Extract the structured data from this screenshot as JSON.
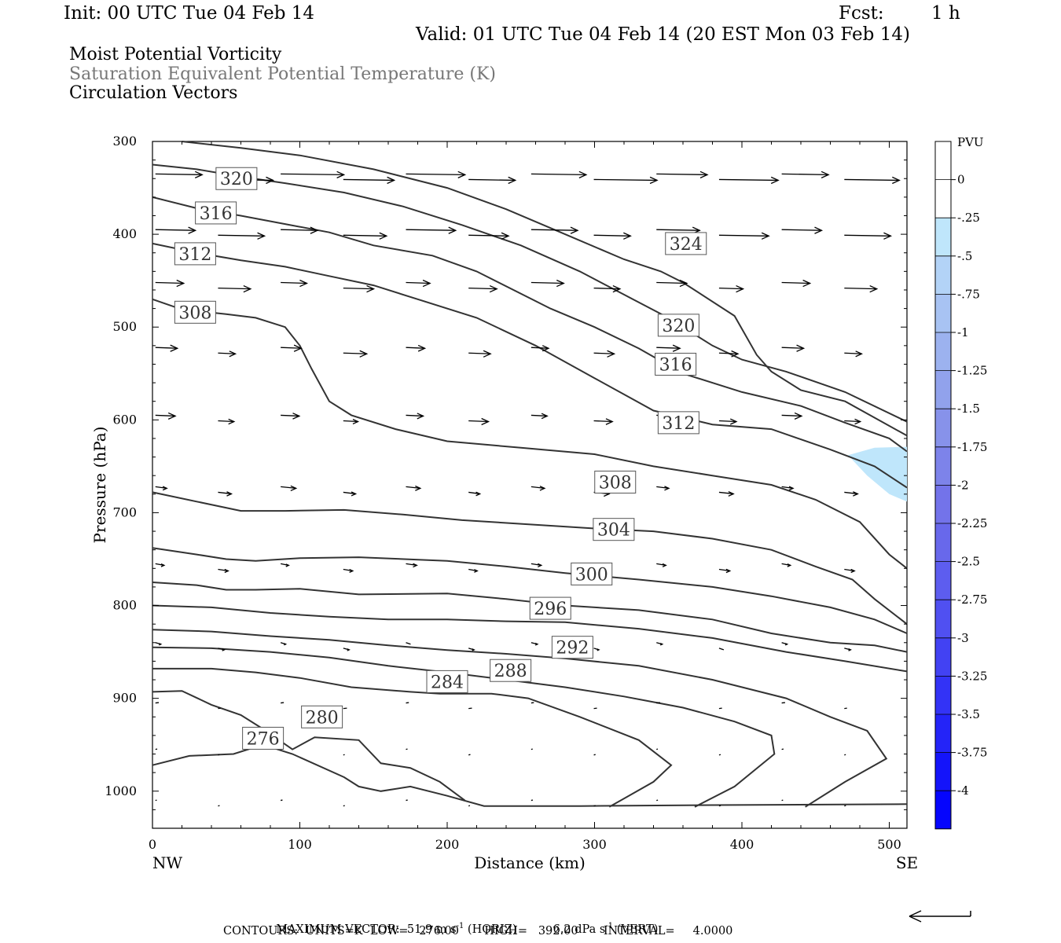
{
  "header": {
    "init": "Init: 00 UTC Tue 04 Feb 14",
    "fcst_label": "Fcst:",
    "fcst_value": "1 h",
    "valid": "Valid: 01 UTC Tue 04 Feb 14 (20 EST Mon 03 Feb 14)",
    "field1": "Moist Potential Vorticity",
    "field2": "Saturation Equivalent Potential Temperature (K)",
    "field3": "Circulation Vectors"
  },
  "chart_data": {
    "type": "cross-section",
    "xlabel": "Distance (km)",
    "ylabel": "Pressure (hPa)",
    "xlim": [
      0,
      512
    ],
    "ylim": [
      1040,
      300
    ],
    "x_ticks": [
      0,
      100,
      200,
      300,
      400,
      500
    ],
    "y_ticks": [
      300,
      400,
      500,
      600,
      700,
      800,
      900,
      1000
    ],
    "x_end_labels": {
      "left": "NW",
      "right": "SE"
    },
    "colorbar": {
      "title": "PVU",
      "labels": [
        "0",
        "-.25",
        "-.5",
        "-.75",
        "-1",
        "-1.25",
        "-1.5",
        "-1.75",
        "-2",
        "-2.25",
        "-2.5",
        "-2.75",
        "-3",
        "-3.25",
        "-3.5",
        "-3.75",
        "-4"
      ],
      "colors": [
        "#ffffff",
        "#ffffff",
        "#bfe6fb",
        "#b3d3f7",
        "#a8c3f3",
        "#9cb2ef",
        "#91a2ec",
        "#8792ea",
        "#7d83ea",
        "#7373ea",
        "#6868eb",
        "#5d5def",
        "#5050f1",
        "#4242f3",
        "#3333f6",
        "#2424f8",
        "#1414fa",
        "#0505fd"
      ]
    },
    "contour_labels": [
      "276",
      "280",
      "284",
      "288",
      "292",
      "296",
      "300",
      "304",
      "308",
      "312",
      "316",
      "320",
      "324"
    ],
    "contours": [
      {
        "value": 276,
        "points": [
          [
            0,
            972
          ],
          [
            25,
            962
          ],
          [
            55,
            960
          ],
          [
            75,
            950
          ],
          [
            95,
            960
          ],
          [
            130,
            985
          ],
          [
            140,
            995
          ],
          [
            155,
            1000
          ],
          [
            175,
            995
          ],
          [
            200,
            1005
          ],
          [
            225,
            1016
          ],
          [
            290,
            1016
          ],
          [
            380,
            1015
          ],
          [
            512,
            1014
          ]
        ]
      },
      {
        "value": 280,
        "points": [
          [
            0,
            893
          ],
          [
            20,
            892
          ],
          [
            40,
            907
          ],
          [
            60,
            918
          ],
          [
            75,
            933
          ],
          [
            95,
            955
          ],
          [
            110,
            942
          ],
          [
            140,
            945
          ],
          [
            155,
            970
          ],
          [
            175,
            975
          ],
          [
            195,
            990
          ],
          [
            212,
            1010
          ]
        ]
      },
      {
        "value": 284,
        "points": [
          [
            0,
            868
          ],
          [
            40,
            868
          ],
          [
            70,
            872
          ],
          [
            100,
            878
          ],
          [
            135,
            888
          ],
          [
            175,
            893
          ],
          [
            195,
            895
          ],
          [
            230,
            895
          ],
          [
            255,
            900
          ],
          [
            290,
            920
          ],
          [
            330,
            945
          ],
          [
            352,
            972
          ],
          [
            340,
            990
          ],
          [
            310,
            1017
          ]
        ]
      },
      {
        "value": 288,
        "points": [
          [
            0,
            845
          ],
          [
            40,
            846
          ],
          [
            80,
            850
          ],
          [
            120,
            856
          ],
          [
            160,
            865
          ],
          [
            200,
            872
          ],
          [
            240,
            880
          ],
          [
            280,
            888
          ],
          [
            320,
            898
          ],
          [
            360,
            910
          ],
          [
            395,
            925
          ],
          [
            420,
            940
          ],
          [
            422,
            960
          ],
          [
            395,
            995
          ],
          [
            368,
            1017
          ]
        ]
      },
      {
        "value": 292,
        "points": [
          [
            0,
            826
          ],
          [
            40,
            828
          ],
          [
            80,
            833
          ],
          [
            120,
            837
          ],
          [
            160,
            843
          ],
          [
            200,
            848
          ],
          [
            240,
            852
          ],
          [
            280,
            857
          ],
          [
            330,
            865
          ],
          [
            380,
            880
          ],
          [
            430,
            900
          ],
          [
            460,
            920
          ],
          [
            485,
            935
          ],
          [
            498,
            965
          ],
          [
            470,
            990
          ],
          [
            443,
            1017
          ]
        ]
      },
      {
        "value": 296,
        "points": [
          [
            0,
            800
          ],
          [
            40,
            802
          ],
          [
            80,
            808
          ],
          [
            120,
            812
          ],
          [
            160,
            815
          ],
          [
            200,
            815
          ],
          [
            240,
            817
          ],
          [
            280,
            818
          ],
          [
            330,
            825
          ],
          [
            380,
            835
          ],
          [
            430,
            850
          ],
          [
            470,
            860
          ],
          [
            512,
            871
          ]
        ]
      },
      {
        "value": 300,
        "points": [
          [
            0,
            775
          ],
          [
            30,
            778
          ],
          [
            50,
            783
          ],
          [
            70,
            783
          ],
          [
            100,
            782
          ],
          [
            140,
            788
          ],
          [
            200,
            787
          ],
          [
            240,
            793
          ],
          [
            280,
            800
          ],
          [
            330,
            805
          ],
          [
            380,
            815
          ],
          [
            420,
            830
          ],
          [
            460,
            840
          ],
          [
            490,
            843
          ],
          [
            512,
            850
          ]
        ]
      },
      {
        "value": 304,
        "points": [
          [
            0,
            738
          ],
          [
            30,
            745
          ],
          [
            50,
            750
          ],
          [
            70,
            752
          ],
          [
            100,
            749
          ],
          [
            140,
            748
          ],
          [
            200,
            752
          ],
          [
            240,
            758
          ],
          [
            280,
            765
          ],
          [
            330,
            772
          ],
          [
            380,
            780
          ],
          [
            420,
            790
          ],
          [
            460,
            802
          ],
          [
            490,
            815
          ],
          [
            512,
            830
          ]
        ]
      },
      {
        "value": 308,
        "points": [
          [
            0,
            678
          ],
          [
            30,
            688
          ],
          [
            60,
            698
          ],
          [
            90,
            698
          ],
          [
            130,
            697
          ],
          [
            170,
            702
          ],
          [
            210,
            708
          ],
          [
            250,
            712
          ],
          [
            300,
            717
          ],
          [
            340,
            720
          ],
          [
            380,
            728
          ],
          [
            420,
            740
          ],
          [
            450,
            758
          ],
          [
            475,
            772
          ],
          [
            490,
            793
          ],
          [
            512,
            820
          ]
        ]
      },
      {
        "value": 312,
        "points": [
          [
            0,
            470
          ],
          [
            20,
            481
          ],
          [
            50,
            486
          ],
          [
            70,
            490
          ],
          [
            90,
            500
          ],
          [
            100,
            520
          ],
          [
            108,
            545
          ],
          [
            120,
            580
          ],
          [
            135,
            595
          ],
          [
            165,
            610
          ],
          [
            200,
            623
          ],
          [
            250,
            630
          ],
          [
            300,
            637
          ],
          [
            340,
            650
          ],
          [
            380,
            660
          ],
          [
            420,
            670
          ],
          [
            450,
            686
          ],
          [
            480,
            710
          ],
          [
            500,
            745
          ],
          [
            512,
            760
          ]
        ]
      },
      {
        "value": 316,
        "points": [
          [
            0,
            410
          ],
          [
            30,
            420
          ],
          [
            60,
            428
          ],
          [
            90,
            435
          ],
          [
            120,
            445
          ],
          [
            150,
            455
          ],
          [
            180,
            470
          ],
          [
            220,
            490
          ],
          [
            260,
            520
          ],
          [
            300,
            555
          ],
          [
            340,
            590
          ],
          [
            380,
            605
          ],
          [
            420,
            610
          ],
          [
            460,
            632
          ],
          [
            490,
            650
          ],
          [
            512,
            673
          ]
        ]
      },
      {
        "value": 320,
        "points": [
          [
            0,
            360
          ],
          [
            30,
            372
          ],
          [
            60,
            380
          ],
          [
            90,
            389
          ],
          [
            120,
            398
          ],
          [
            150,
            412
          ],
          [
            190,
            423
          ],
          [
            220,
            440
          ],
          [
            270,
            480
          ],
          [
            300,
            500
          ],
          [
            330,
            523
          ],
          [
            360,
            550
          ],
          [
            400,
            570
          ],
          [
            440,
            585
          ],
          [
            470,
            603
          ],
          [
            500,
            620
          ],
          [
            512,
            634
          ]
        ]
      },
      {
        "value": 324,
        "points": [
          [
            0,
            325
          ],
          [
            30,
            330
          ],
          [
            60,
            338
          ],
          [
            90,
            345
          ],
          [
            130,
            355
          ],
          [
            170,
            370
          ],
          [
            210,
            390
          ],
          [
            250,
            412
          ],
          [
            290,
            440
          ],
          [
            320,
            465
          ],
          [
            350,
            490
          ],
          [
            380,
            520
          ],
          [
            400,
            535
          ],
          [
            430,
            548
          ],
          [
            470,
            570
          ],
          [
            512,
            602
          ]
        ]
      },
      {
        "value": 328,
        "points": [
          [
            20,
            300
          ],
          [
            60,
            307
          ],
          [
            100,
            315
          ],
          [
            150,
            330
          ],
          [
            200,
            350
          ],
          [
            240,
            373
          ],
          [
            280,
            400
          ],
          [
            320,
            427
          ],
          [
            345,
            440
          ],
          [
            360,
            452
          ],
          [
            395,
            488
          ],
          [
            410,
            530
          ],
          [
            420,
            548
          ],
          [
            440,
            568
          ],
          [
            470,
            580
          ],
          [
            512,
            617
          ]
        ]
      }
    ],
    "pv_regions": [
      {
        "level": "-.25 to -.5",
        "points": [
          [
            472,
            638
          ],
          [
            490,
            630
          ],
          [
            512,
            629
          ],
          [
            512,
            688
          ],
          [
            500,
            680
          ],
          [
            485,
            660
          ]
        ]
      }
    ],
    "max_vector": {
      "horiz": "51.9",
      "vert": "6.2"
    },
    "contour_info": {
      "units": "K",
      "low": "276.00",
      "high": "392.00",
      "interval": "4.0000"
    }
  },
  "footer": {
    "max_vector_prefix": "MAXIMUM VECTOR:",
    "horiz_value": "51.9",
    "horiz_unit": "m s",
    "horiz_suffix": "(HORIZ)",
    "vert_value": "6.2",
    "vert_unit": "dPa s",
    "vert_suffix": "(VERT)",
    "exp": "-1",
    "contours_line": "CONTOURS:  UNITS=K  LOW=   276.00       HIGH=   392.00       INTERVAL=     4.0000"
  },
  "colors": {
    "contour": "#333333",
    "axis": "#000000",
    "pv_light": "#bfe6fb"
  }
}
